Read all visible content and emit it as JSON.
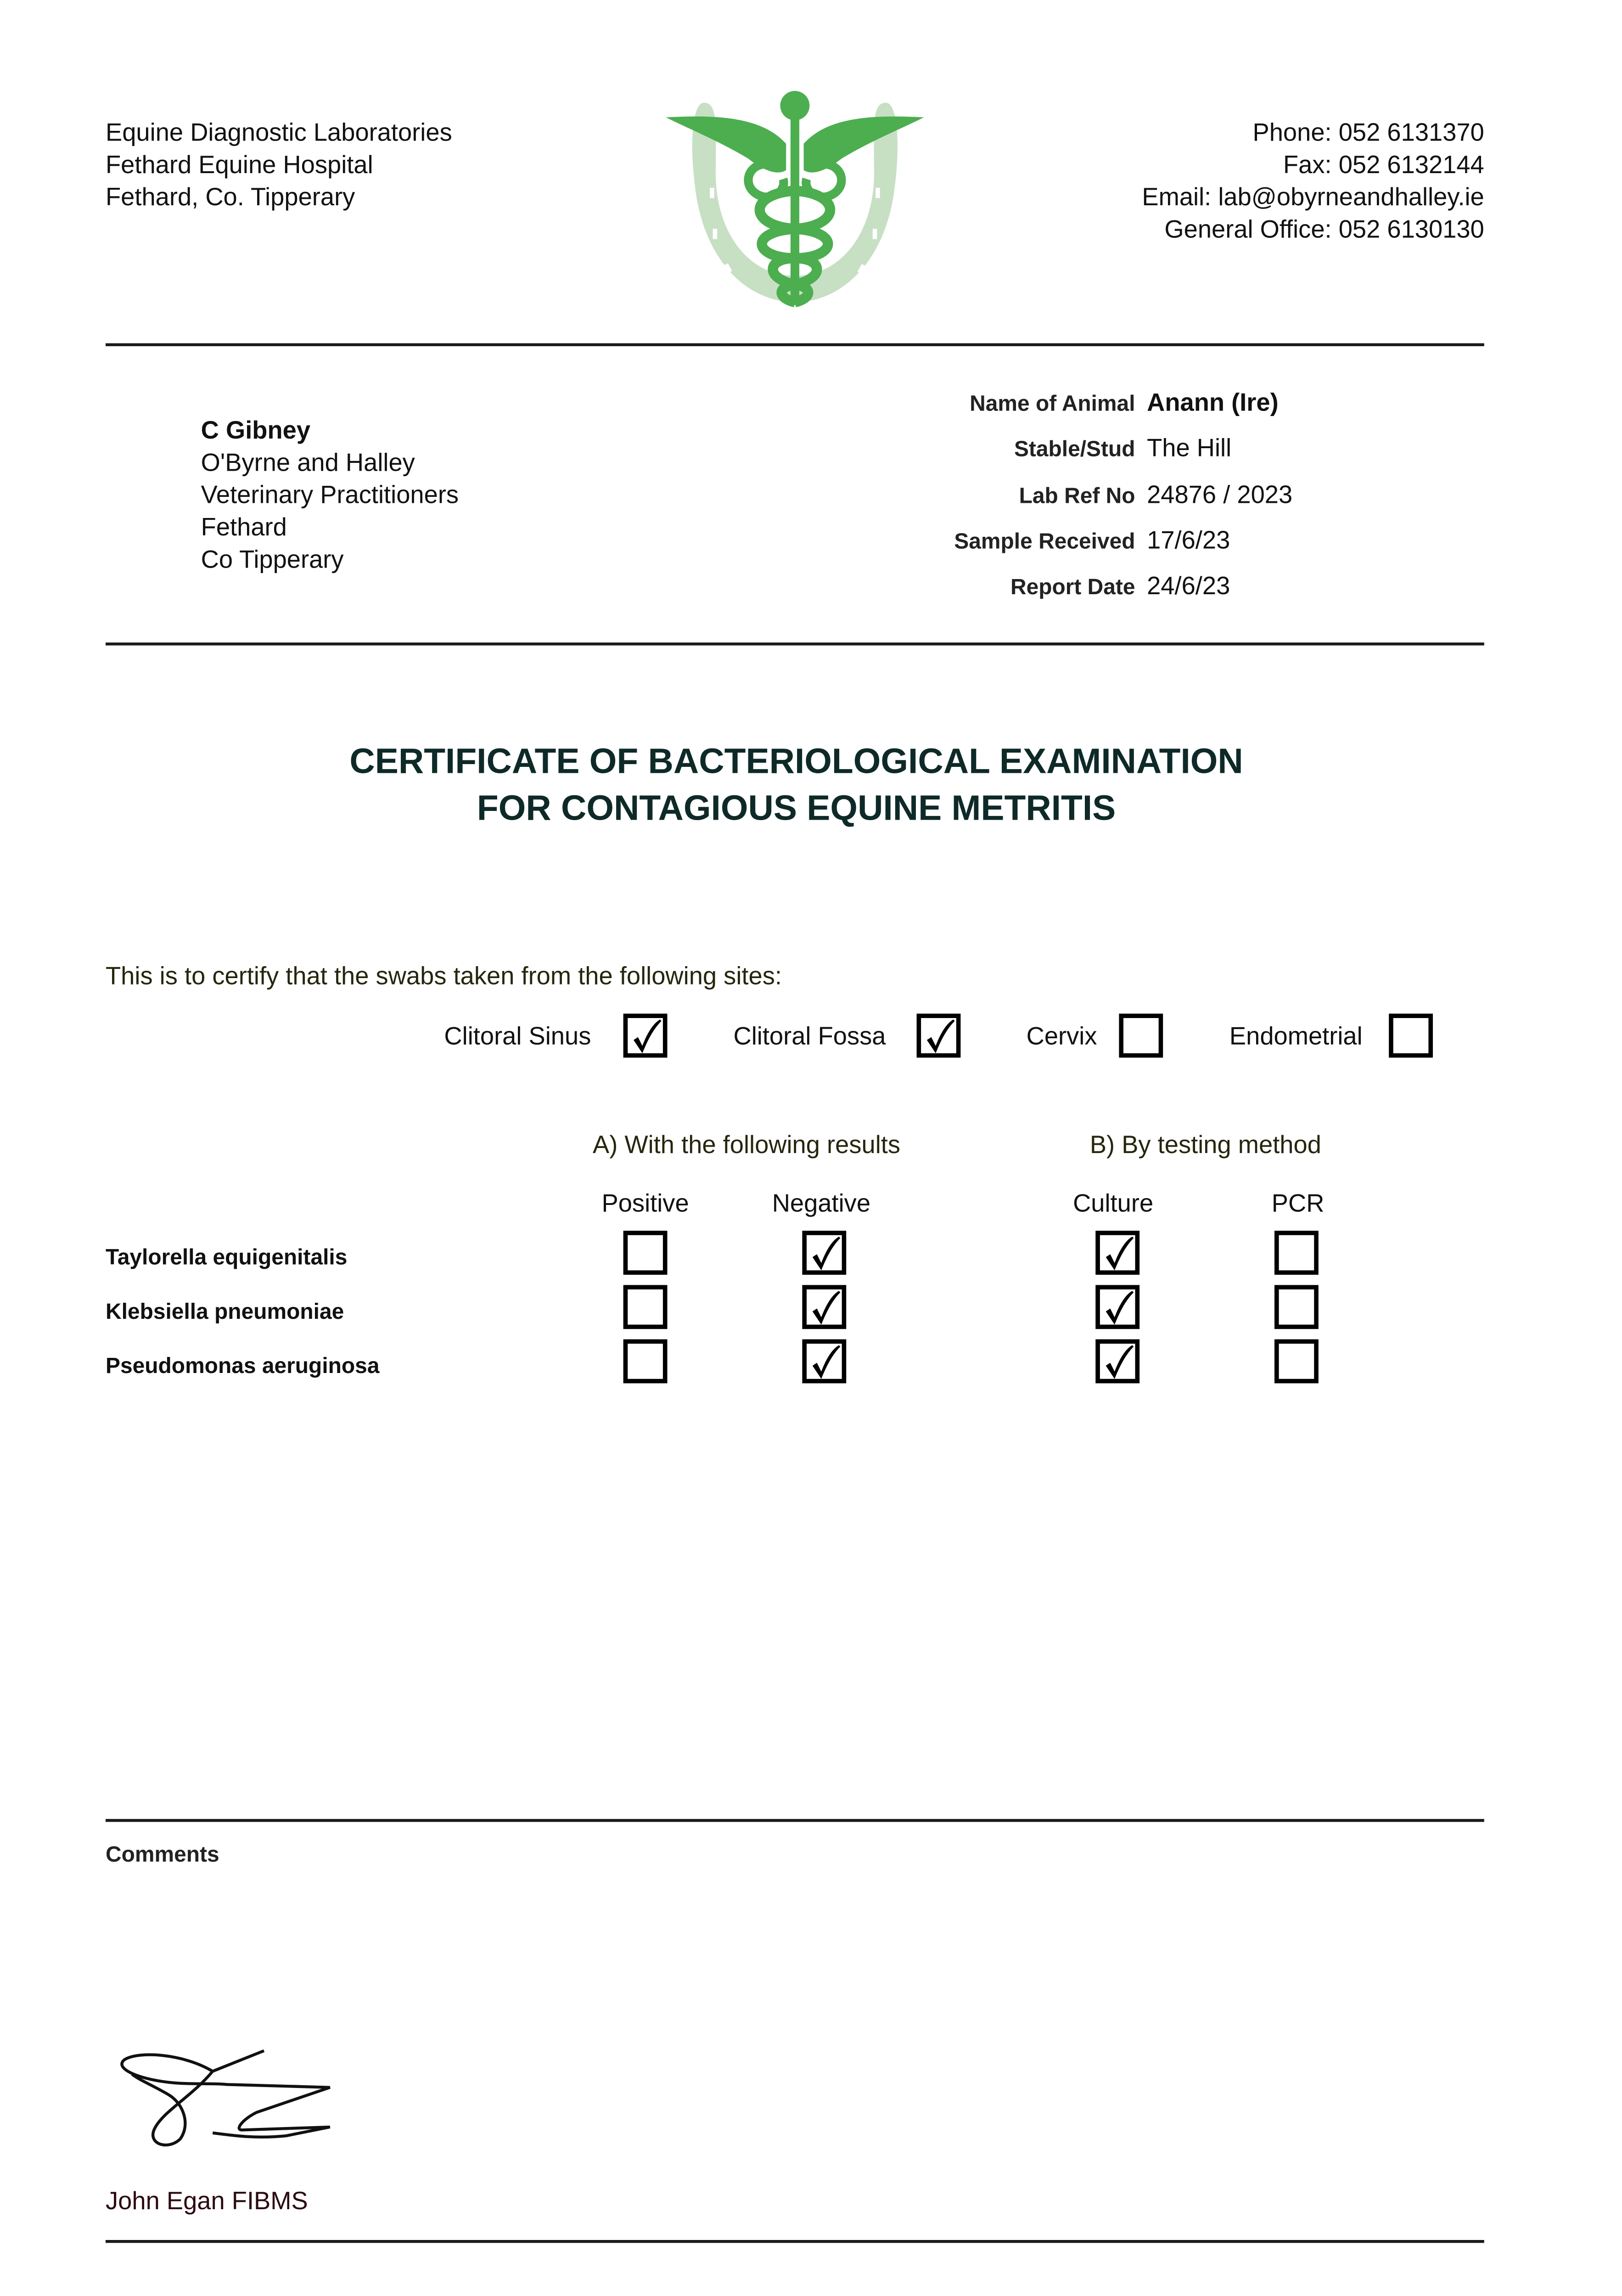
{
  "header": {
    "lab_lines": [
      "Equine Diagnostic Laboratories",
      "Fethard Equine Hospital",
      "Fethard, Co. Tipperary"
    ],
    "contact_lines": [
      "Phone: 052 6131370",
      "Fax: 052 6132144",
      "Email: lab@obyrneandhalley.ie",
      "General Office: 052 6130130"
    ],
    "logo_icon": "caduceus-horseshoe-icon",
    "logo_colors": {
      "caduceus": "#4cae4f",
      "horseshoe": "#c7e0c4"
    }
  },
  "recipient": {
    "name": "C Gibney",
    "address_lines": [
      "O'Byrne and Halley",
      "Veterinary Practitioners",
      "Fethard",
      "Co Tipperary"
    ]
  },
  "details": [
    {
      "label": "Name of Animal",
      "value": "Anann (Ire)"
    },
    {
      "label": "Stable/Stud",
      "value": "The Hill"
    },
    {
      "label": "Lab Ref No",
      "value": "24876 / 2023"
    },
    {
      "label": "Sample Received",
      "value": "17/6/23"
    },
    {
      "label": "Report Date",
      "value": "24/6/23"
    }
  ],
  "title": {
    "line1": "CERTIFICATE OF BACTERIOLOGICAL EXAMINATION",
    "line2": "FOR CONTAGIOUS EQUINE METRITIS"
  },
  "certify_text": "This is to certify that the swabs taken from the following sites:",
  "sites": [
    {
      "label": "Clitoral Sinus",
      "checked": true
    },
    {
      "label": "Clitoral Fossa",
      "checked": true
    },
    {
      "label": "Cervix",
      "checked": false
    },
    {
      "label": "Endometrial",
      "checked": false
    }
  ],
  "results": {
    "section_a": "A) With the following results",
    "section_b": "B) By testing method",
    "columns": [
      "Positive",
      "Negative",
      "Culture",
      "PCR"
    ],
    "rows": [
      {
        "organism": "Taylorella equigenitalis",
        "checks": [
          false,
          true,
          true,
          false
        ]
      },
      {
        "organism": "Klebsiella pneumoniae",
        "checks": [
          false,
          true,
          true,
          false
        ]
      },
      {
        "organism": "Pseudomonas aeruginosa",
        "checks": [
          false,
          true,
          true,
          false
        ]
      }
    ]
  },
  "comments": {
    "label": "Comments"
  },
  "signatory": {
    "name": "John Egan FIBMS"
  }
}
